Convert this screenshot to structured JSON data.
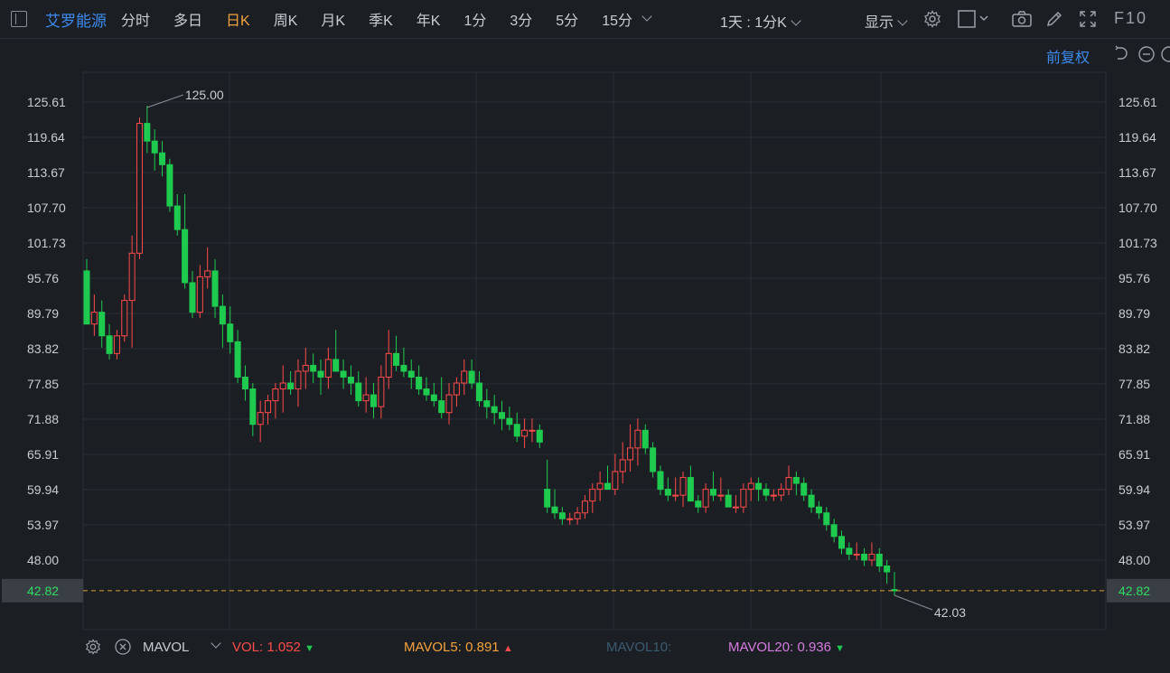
{
  "toolbar": {
    "stock_name": "艾罗能源",
    "tabs": [
      "分时",
      "多日",
      "日K",
      "周K",
      "月K",
      "季K",
      "年K",
      "1分",
      "3分",
      "5分",
      "15分"
    ],
    "active_tab": "日K",
    "period_select": "1天 : 1分K",
    "display_label": "显示",
    "f10_label": "F10",
    "icons": [
      "settings-icon",
      "square-icon",
      "camera-icon",
      "pencil-icon",
      "fullscreen-icon"
    ]
  },
  "subbar": {
    "adjust_label": "前复权"
  },
  "chart_data": {
    "type": "candlestick",
    "y_ticks": [
      "125.61",
      "119.64",
      "113.67",
      "107.70",
      "101.73",
      "95.76",
      "89.79",
      "83.82",
      "77.85",
      "71.88",
      "65.91",
      "59.94",
      "53.97",
      "48.00"
    ],
    "y_range": [
      42.82,
      125.61
    ],
    "current_price": "42.82",
    "high_label": "125.00",
    "low_label": "42.03",
    "colors": {
      "up": "#ff4a4a",
      "down": "#1ecb4f",
      "grid": "#2a2f36",
      "background": "#1b1f24"
    },
    "candles": [
      [
        97,
        99,
        88,
        88
      ],
      [
        88,
        93,
        86,
        90
      ],
      [
        90,
        92,
        84,
        86
      ],
      [
        86,
        88,
        82,
        83
      ],
      [
        83,
        87,
        82,
        86
      ],
      [
        86,
        93,
        85,
        92
      ],
      [
        92,
        103,
        84,
        100
      ],
      [
        100,
        123,
        99,
        122
      ],
      [
        122,
        125,
        117,
        119
      ],
      [
        119,
        121,
        114,
        117
      ],
      [
        117,
        119,
        113,
        115
      ],
      [
        115,
        116,
        107,
        108
      ],
      [
        108,
        110,
        103,
        104
      ],
      [
        104,
        110,
        94,
        95
      ],
      [
        95,
        97,
        89,
        90
      ],
      [
        90,
        98,
        89,
        96
      ],
      [
        96,
        101,
        94,
        97
      ],
      [
        97,
        99,
        89,
        91
      ],
      [
        91,
        93,
        84,
        88
      ],
      [
        88,
        91,
        83,
        85
      ],
      [
        85,
        87,
        78,
        79
      ],
      [
        79,
        81,
        75,
        77
      ],
      [
        77,
        78,
        69,
        71
      ],
      [
        71,
        75,
        68,
        73
      ],
      [
        73,
        76,
        71,
        75
      ],
      [
        75,
        78,
        72,
        77
      ],
      [
        77,
        81,
        73,
        78
      ],
      [
        78,
        80,
        76,
        77
      ],
      [
        77,
        82,
        74,
        80
      ],
      [
        80,
        84,
        77,
        81
      ],
      [
        81,
        83,
        78,
        80
      ],
      [
        80,
        82,
        76,
        79
      ],
      [
        79,
        84,
        77,
        82
      ],
      [
        82,
        87,
        80,
        80
      ],
      [
        80,
        82,
        77,
        79
      ],
      [
        79,
        81,
        76,
        78
      ],
      [
        78,
        80,
        74,
        75
      ],
      [
        75,
        79,
        73,
        76
      ],
      [
        76,
        78,
        72,
        74
      ],
      [
        74,
        81,
        72,
        79
      ],
      [
        79,
        87,
        77,
        83
      ],
      [
        83,
        86,
        80,
        81
      ],
      [
        81,
        84,
        79,
        80
      ],
      [
        80,
        82,
        77,
        79
      ],
      [
        79,
        81,
        76,
        77
      ],
      [
        77,
        79,
        75,
        76
      ],
      [
        76,
        78,
        74,
        75
      ],
      [
        75,
        79,
        72,
        73
      ],
      [
        73,
        78,
        71,
        76
      ],
      [
        76,
        79,
        74,
        78
      ],
      [
        78,
        82,
        76,
        80
      ],
      [
        80,
        82,
        77,
        78
      ],
      [
        78,
        80,
        74,
        75
      ],
      [
        75,
        77,
        72,
        74
      ],
      [
        74,
        76,
        71,
        73
      ],
      [
        73,
        75,
        70,
        72
      ],
      [
        72,
        74,
        70,
        71
      ],
      [
        71,
        73,
        68,
        69
      ],
      [
        69,
        72,
        67,
        70
      ],
      [
        70,
        72,
        68,
        70
      ],
      [
        70,
        71,
        67,
        68
      ],
      [
        60,
        65,
        56,
        57
      ],
      [
        57,
        60,
        55,
        56
      ],
      [
        56,
        57,
        54,
        55
      ],
      [
        55,
        56,
        54,
        55
      ],
      [
        55,
        57,
        54,
        56
      ],
      [
        56,
        59,
        55,
        58
      ],
      [
        58,
        61,
        56,
        60
      ],
      [
        60,
        63,
        58,
        61
      ],
      [
        61,
        64,
        60,
        60
      ],
      [
        60,
        66,
        59,
        63
      ],
      [
        63,
        68,
        61,
        65
      ],
      [
        65,
        71,
        63,
        67
      ],
      [
        67,
        72,
        64,
        70
      ],
      [
        70,
        71,
        66,
        67
      ],
      [
        67,
        68,
        62,
        63
      ],
      [
        63,
        64,
        59,
        60
      ],
      [
        60,
        62,
        58,
        59
      ],
      [
        59,
        62,
        58,
        59
      ],
      [
        59,
        63,
        57,
        62
      ],
      [
        62,
        64,
        58,
        58
      ],
      [
        58,
        59,
        56,
        57
      ],
      [
        57,
        61,
        56,
        60
      ],
      [
        60,
        63,
        58,
        59
      ],
      [
        59,
        62,
        58,
        59
      ],
      [
        59,
        60,
        57,
        57
      ],
      [
        57,
        59,
        56,
        57
      ],
      [
        57,
        61,
        56,
        60
      ],
      [
        60,
        62,
        58,
        61
      ],
      [
        61,
        62,
        58,
        60
      ],
      [
        60,
        61,
        58,
        59
      ],
      [
        59,
        60,
        58,
        59
      ],
      [
        59,
        61,
        58,
        60
      ],
      [
        60,
        64,
        59,
        62
      ],
      [
        62,
        63,
        59,
        61
      ],
      [
        61,
        62,
        58,
        59
      ],
      [
        59,
        60,
        56,
        57
      ],
      [
        57,
        58,
        55,
        56
      ],
      [
        56,
        57,
        53,
        54
      ],
      [
        54,
        55,
        51,
        52
      ],
      [
        52,
        53,
        49,
        50
      ],
      [
        50,
        51,
        48,
        49
      ],
      [
        49,
        51,
        48,
        49
      ],
      [
        49,
        50,
        47,
        48
      ],
      [
        48,
        51,
        47,
        49
      ],
      [
        49,
        50,
        46,
        47
      ],
      [
        47,
        48,
        44,
        46
      ],
      [
        43,
        46,
        42.03,
        42.8
      ]
    ]
  },
  "volume_bar": {
    "indicator_name": "MAVOL",
    "vol_label": "VOL:",
    "vol_value": "1.052",
    "mavol5_label": "MAVOL5:",
    "mavol5_value": "0.891",
    "mavol10_label": "MAVOL10:",
    "mavol20_label": "MAVOL20:",
    "mavol20_value": "0.936",
    "colors": {
      "vol": "#ff4a4a",
      "mavol5": "#f4a23b",
      "mavol10": "#3a5a72",
      "mavol20": "#d67be0"
    }
  }
}
